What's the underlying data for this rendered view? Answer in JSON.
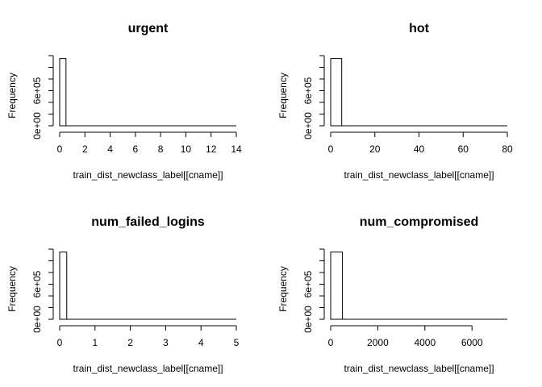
{
  "chart_data": [
    {
      "type": "bar",
      "title": "urgent",
      "xlabel": "train_dist_newclass_label[[cname]]",
      "ylabel": "Frequency",
      "xlim": [
        0,
        14
      ],
      "x_ticks": [
        "0",
        "2",
        "4",
        "6",
        "8",
        "10",
        "12",
        "14"
      ],
      "ylim": [
        0,
        1200000
      ],
      "y_ticks": [
        "0e+00",
        "6e+05"
      ],
      "bins": [
        {
          "x0": 0,
          "x1": 0.5,
          "value": 1150000
        },
        {
          "x0": 0.5,
          "x1": 14,
          "value": 0
        }
      ]
    },
    {
      "type": "bar",
      "title": "hot",
      "xlabel": "train_dist_newclass_label[[cname]]",
      "ylabel": "Frequency",
      "xlim": [
        0,
        80
      ],
      "x_ticks": [
        "0",
        "20",
        "40",
        "60",
        "80"
      ],
      "ylim": [
        0,
        1200000
      ],
      "y_ticks": [
        "0e+00",
        "6e+05"
      ],
      "bins": [
        {
          "x0": 0,
          "x1": 5,
          "value": 1150000
        },
        {
          "x0": 5,
          "x1": 80,
          "value": 0
        }
      ]
    },
    {
      "type": "bar",
      "title": "num_failed_logins",
      "xlabel": "train_dist_newclass_label[[cname]]",
      "ylabel": "Frequency",
      "xlim": [
        0,
        5
      ],
      "x_ticks": [
        "0",
        "1",
        "2",
        "3",
        "4",
        "5"
      ],
      "ylim": [
        0,
        1200000
      ],
      "y_ticks": [
        "0e+00",
        "6e+05"
      ],
      "bins": [
        {
          "x0": 0,
          "x1": 0.2,
          "value": 1150000
        },
        {
          "x0": 0.2,
          "x1": 5,
          "value": 0
        }
      ]
    },
    {
      "type": "bar",
      "title": "num_compromised",
      "xlabel": "train_dist_newclass_label[[cname]]",
      "ylabel": "Frequency",
      "xlim": [
        0,
        7500
      ],
      "x_ticks": [
        "0",
        "2000",
        "4000",
        "6000"
      ],
      "ylim": [
        0,
        1200000
      ],
      "y_ticks": [
        "0e+00",
        "6e+05"
      ],
      "bins": [
        {
          "x0": 0,
          "x1": 500,
          "value": 1150000
        },
        {
          "x0": 500,
          "x1": 7500,
          "value": 0
        }
      ]
    }
  ]
}
